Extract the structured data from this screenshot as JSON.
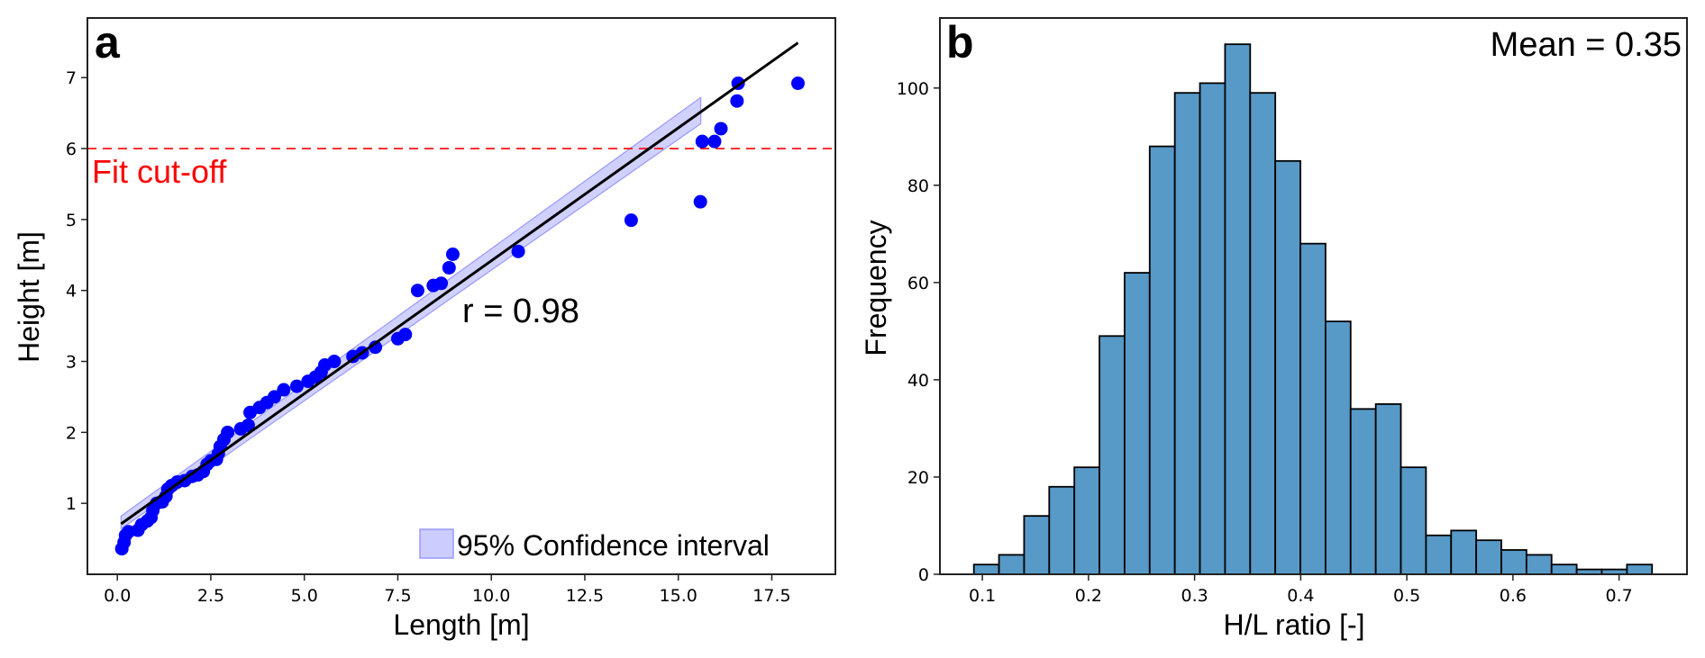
{
  "chart_data": [
    {
      "panel": "a",
      "type": "scatter",
      "panel_letter": "a",
      "xlabel": "Length [m]",
      "ylabel": "Height [m]",
      "xlim": [
        -0.8,
        19.2
      ],
      "ylim": [
        0.0,
        7.84
      ],
      "xticks": [
        0.0,
        2.5,
        5.0,
        7.5,
        10.0,
        12.5,
        15.0,
        17.5
      ],
      "xtick_labels": [
        "0.0",
        "2.5",
        "5.0",
        "7.5",
        "10.0",
        "12.5",
        "15.0",
        "17.5"
      ],
      "yticks": [
        1,
        2,
        3,
        4,
        5,
        6,
        7
      ],
      "ytick_labels": [
        "1",
        "2",
        "3",
        "4",
        "5",
        "6",
        "7"
      ],
      "grid": false,
      "point_color": "#0000ff",
      "points": [
        [
          0.12,
          0.36
        ],
        [
          0.18,
          0.45
        ],
        [
          0.22,
          0.55
        ],
        [
          0.3,
          0.6
        ],
        [
          0.55,
          0.62
        ],
        [
          0.65,
          0.7
        ],
        [
          0.8,
          0.75
        ],
        [
          0.9,
          0.8
        ],
        [
          0.95,
          0.9
        ],
        [
          1.05,
          1.0
        ],
        [
          1.2,
          1.02
        ],
        [
          1.3,
          1.1
        ],
        [
          1.35,
          1.2
        ],
        [
          1.45,
          1.25
        ],
        [
          1.6,
          1.3
        ],
        [
          1.8,
          1.32
        ],
        [
          2.0,
          1.38
        ],
        [
          2.15,
          1.4
        ],
        [
          2.3,
          1.45
        ],
        [
          2.4,
          1.55
        ],
        [
          2.5,
          1.6
        ],
        [
          2.65,
          1.62
        ],
        [
          2.7,
          1.7
        ],
        [
          2.75,
          1.8
        ],
        [
          2.85,
          1.9
        ],
        [
          2.95,
          2.0
        ],
        [
          3.3,
          2.05
        ],
        [
          3.5,
          2.1
        ],
        [
          3.55,
          2.28
        ],
        [
          3.8,
          2.35
        ],
        [
          4.0,
          2.42
        ],
        [
          4.2,
          2.5
        ],
        [
          4.45,
          2.6
        ],
        [
          4.8,
          2.65
        ],
        [
          5.1,
          2.72
        ],
        [
          5.3,
          2.78
        ],
        [
          5.45,
          2.85
        ],
        [
          5.55,
          2.95
        ],
        [
          5.8,
          3.0
        ],
        [
          6.3,
          3.07
        ],
        [
          6.55,
          3.12
        ],
        [
          6.9,
          3.2
        ],
        [
          7.5,
          3.32
        ],
        [
          7.7,
          3.38
        ],
        [
          8.03,
          4.0
        ],
        [
          8.45,
          4.07
        ],
        [
          8.66,
          4.1
        ],
        [
          8.87,
          4.32
        ],
        [
          8.97,
          4.51
        ],
        [
          10.72,
          4.55
        ],
        [
          13.74,
          4.99
        ],
        [
          15.59,
          5.25
        ],
        [
          15.64,
          6.1
        ],
        [
          15.97,
          6.1
        ],
        [
          16.14,
          6.28
        ],
        [
          16.57,
          6.67
        ],
        [
          16.6,
          6.92
        ],
        [
          18.2,
          6.92
        ]
      ],
      "regression_line": {
        "x": [
          0.1,
          18.2
        ],
        "y": [
          0.71,
          7.49
        ],
        "color": "#000000"
      },
      "confidence_interval": {
        "label": "95% Confidence interval",
        "color": "#ccccff",
        "edge_color": "#9999ff",
        "x": [
          0.1,
          15.6
        ],
        "lower": [
          0.64,
          6.35
        ],
        "upper": [
          0.82,
          6.72
        ]
      },
      "cutoff": {
        "y": 6,
        "label": "Fit cut-off",
        "color": "#ff0000"
      },
      "annotation": "r = 0.98",
      "legend": {
        "placement": "bottom-right",
        "entries": [
          "95% Confidence interval"
        ]
      }
    },
    {
      "panel": "b",
      "type": "bar",
      "panel_letter": "b",
      "title": "",
      "xlabel": "H/L ratio [-]",
      "ylabel": "Frequency",
      "xlim": [
        0.06,
        0.764
      ],
      "ylim": [
        0,
        114.4
      ],
      "xticks": [
        0.1,
        0.2,
        0.3,
        0.4,
        0.5,
        0.6,
        0.7
      ],
      "xtick_labels": [
        "0.1",
        "0.2",
        "0.3",
        "0.4",
        "0.5",
        "0.6",
        "0.7"
      ],
      "yticks": [
        0,
        20,
        40,
        60,
        80,
        100
      ],
      "ytick_labels": [
        "0",
        "20",
        "40",
        "60",
        "80",
        "100"
      ],
      "grid": false,
      "bar_color": "#5799c7",
      "edge_color": "#000000",
      "bin_start": 0.092,
      "bin_width": 0.02367,
      "values": [
        2,
        4,
        12,
        18,
        22,
        49,
        62,
        88,
        99,
        101,
        109,
        99,
        85,
        68,
        52,
        34,
        35,
        22,
        8,
        9,
        7,
        5,
        4,
        2,
        1,
        1,
        2
      ],
      "annotation": "Mean = 0.35"
    }
  ]
}
